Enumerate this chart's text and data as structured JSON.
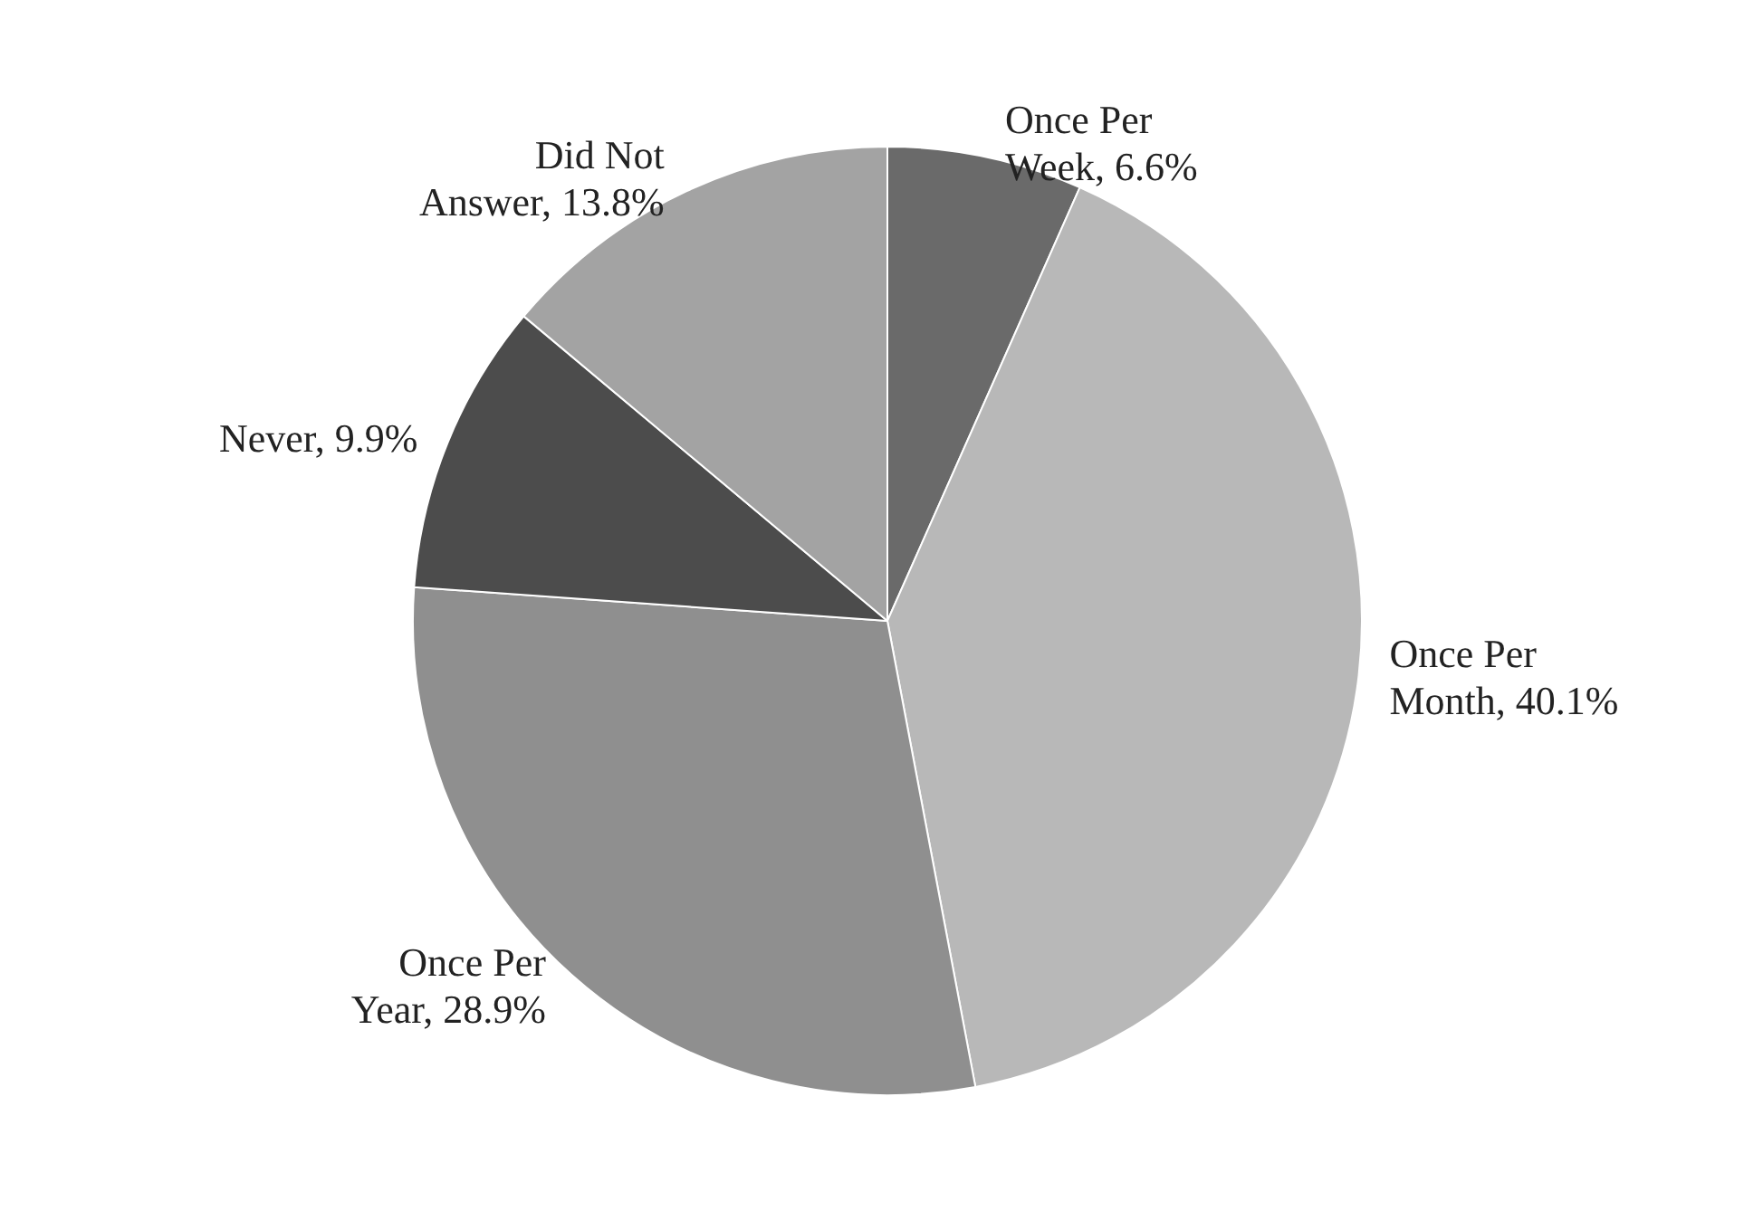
{
  "chart_data": {
    "type": "pie",
    "categories": [
      "Once Per Week",
      "Once Per Month",
      "Once Per Year",
      "Never",
      "Did Not Answer"
    ],
    "values": [
      6.6,
      40.1,
      28.9,
      9.9,
      13.8
    ],
    "value_labels": [
      "6.6%",
      "40.1%",
      "28.9%",
      "9.9%",
      "13.8%"
    ],
    "colors": [
      "#6a6a6a",
      "#b8b8b8",
      "#8f8f8f",
      "#4c4c4c",
      "#a3a3a3"
    ]
  }
}
